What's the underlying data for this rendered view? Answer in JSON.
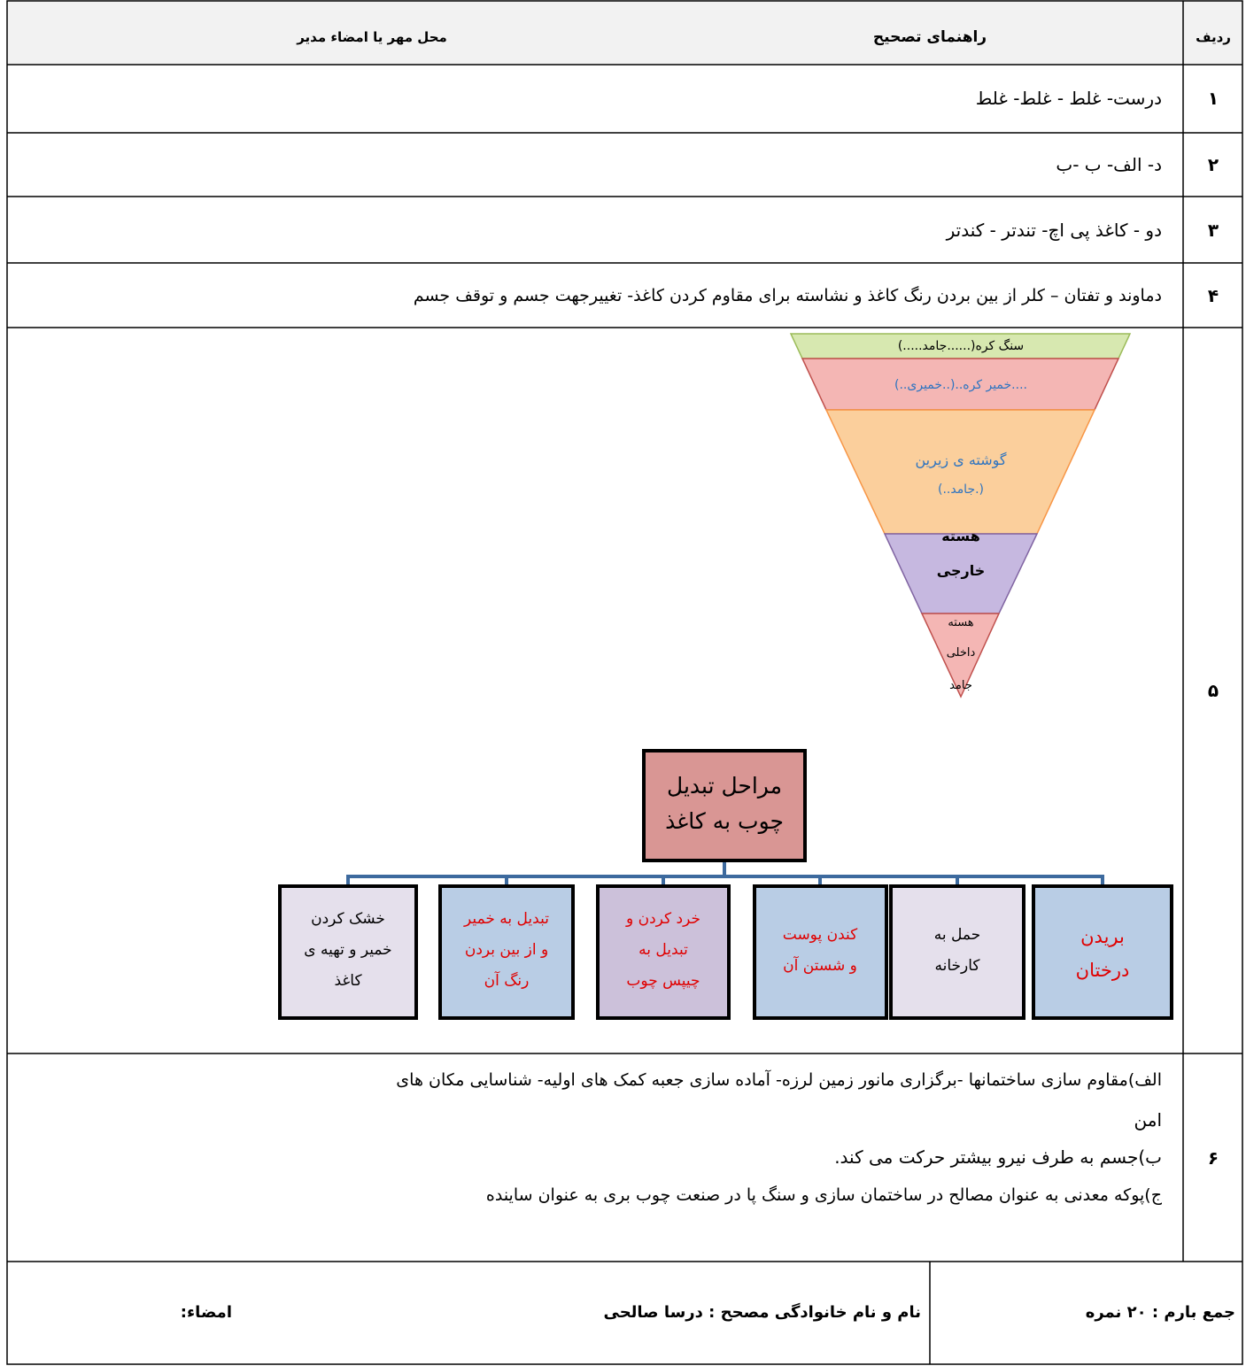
{
  "header": {
    "row_label": "ردیف",
    "guide": "راهنمای تصحیح",
    "stamp": "محل مهر یا امضاء مدیر"
  },
  "rows": [
    {
      "number": "۱",
      "lines": [
        "درست- غلط -  غلط- غلط"
      ]
    },
    {
      "number": "۲",
      "lines": [
        "د- الف- ب -ب"
      ]
    },
    {
      "number": "۳",
      "lines": [
        "دو  - کاغذ پی اچ- تندتر - کندتر"
      ]
    },
    {
      "number": "۴",
      "lines": [
        "دماوند و تفتان – کلر از بین بردن رنگ کاغذ و نشاسته برای مقاوم کردن کاغذ- تغییرجهت جسم و توقف جسم"
      ]
    },
    {
      "number": "۵",
      "pyramid": {
        "layers": [
          {
            "lines": [
              "سنگ کره(......جامد.....)"
            ]
          },
          {
            "lines": [
              "....خمیر کره..(..خمیری..)"
            ]
          },
          {
            "lines": [
              "گوشته ی زیرین",
              "(.جامد..)"
            ]
          },
          {
            "lines": [
              "هسته",
              "خارجی"
            ]
          },
          {
            "lines": [
              "هسته",
              "داخلی",
              "جامد"
            ]
          }
        ]
      },
      "flowchart": {
        "root": [
          "مراحل تبدیل",
          "چوب به کاغذ"
        ],
        "steps": [
          {
            "lines": [
              "بریدن",
              "درختان"
            ]
          },
          {
            "lines": [
              "حمل به",
              "کارخانه"
            ]
          },
          {
            "lines": [
              "کندن پوست",
              "و شستن آن"
            ]
          },
          {
            "lines": [
              "خرد کردن و",
              "تبدیل به",
              "چیپس چوب"
            ]
          },
          {
            "lines": [
              "تبدیل به خمیر",
              "و از بین بردن",
              "رنگ آن"
            ]
          },
          {
            "lines": [
              "خشک کردن",
              "خمیر و تهیه ی",
              "کاغذ"
            ]
          }
        ]
      }
    },
    {
      "number": "۶",
      "lines": [
        "الف)مقاوم سازی ساختمانها -برگزاری مانور زمین لرزه- آماده سازی جعبه کمک های اولیه- شناسایی مکان های",
        "امن",
        "ب)جسم به  طرف  نیرو بیشتر حرکت می کند.",
        "ج)پوکه معدنی به عنوان مصالح در ساختمان سازی  و سنگ پا در صنعت چوب بری به عنوان ساینده"
      ]
    }
  ],
  "footer": {
    "total": "جمع بارم : ۲۰ نمره",
    "grader": "نام و نام خانوادگی مصحح : درسا صالحی",
    "signature": "امضاء:"
  }
}
